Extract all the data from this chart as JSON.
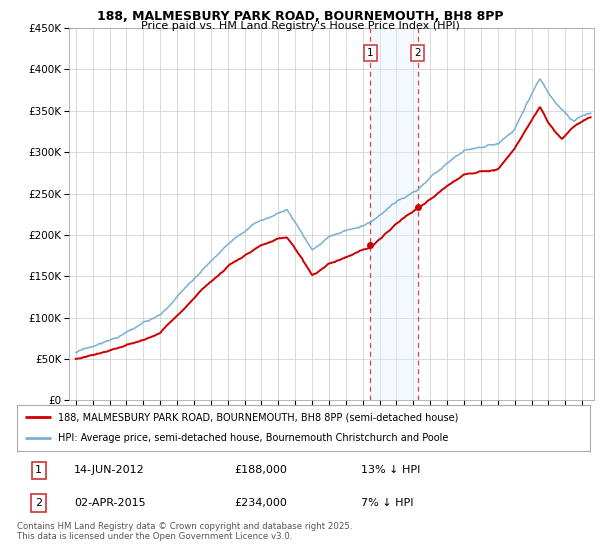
{
  "title1": "188, MALMESBURY PARK ROAD, BOURNEMOUTH, BH8 8PP",
  "title2": "Price paid vs. HM Land Registry's House Price Index (HPI)",
  "legend_line1": "188, MALMESBURY PARK ROAD, BOURNEMOUTH, BH8 8PP (semi-detached house)",
  "legend_line2": "HPI: Average price, semi-detached house, Bournemouth Christchurch and Poole",
  "footnote": "Contains HM Land Registry data © Crown copyright and database right 2025.\nThis data is licensed under the Open Government Licence v3.0.",
  "transaction1_date": "14-JUN-2012",
  "transaction1_price": "£188,000",
  "transaction1_hpi": "13% ↓ HPI",
  "transaction2_date": "02-APR-2015",
  "transaction2_price": "£234,000",
  "transaction2_hpi": "7% ↓ HPI",
  "line_color_red": "#cc0000",
  "line_color_blue": "#7ab0d4",
  "shade_color": "#ddeeff",
  "dashed_color": "#dd2222",
  "background_color": "#ffffff",
  "grid_color": "#cccccc",
  "ylim": [
    0,
    450000
  ],
  "yticks": [
    0,
    50000,
    100000,
    150000,
    200000,
    250000,
    300000,
    350000,
    400000,
    450000
  ],
  "marker1_x": 2012.45,
  "marker1_y": 188000,
  "marker2_x": 2015.25,
  "marker2_y": 234000,
  "vline1_x": 2012.45,
  "vline2_x": 2015.25,
  "shade_x1": 2012.45,
  "shade_x2": 2015.25,
  "xlim_left": 1994.6,
  "xlim_right": 2025.7
}
